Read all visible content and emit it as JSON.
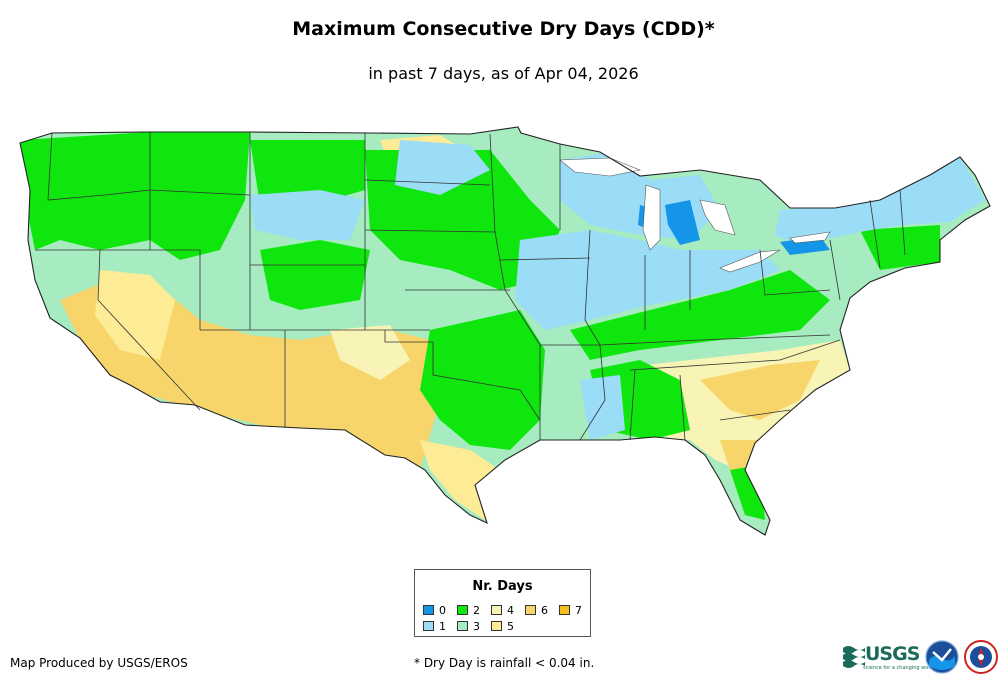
{
  "title": "Maximum Consecutive Dry Days (CDD)*",
  "subtitle": "in past 7 days, as of Apr 04, 2026",
  "legend": {
    "title": "Nr. Days",
    "items": [
      {
        "label": "0",
        "color": "#1495e8"
      },
      {
        "label": "1",
        "color": "#9bdcf7"
      },
      {
        "label": "2",
        "color": "#0ee60e"
      },
      {
        "label": "3",
        "color": "#a6ecc0"
      },
      {
        "label": "4",
        "color": "#f7f4b5"
      },
      {
        "label": "5",
        "color": "#fdeb96"
      },
      {
        "label": "6",
        "color": "#f7d56b"
      },
      {
        "label": "7",
        "color": "#f7bd1a"
      }
    ]
  },
  "credit": "Map Produced by USGS/EROS",
  "footnote": "* Dry Day is rainfall < 0.04 in.",
  "logos": {
    "usgs_text": "USGS",
    "usgs_tagline": "science for a changing world",
    "noaa_text": "NOAA",
    "nws_text": "NWS"
  }
}
